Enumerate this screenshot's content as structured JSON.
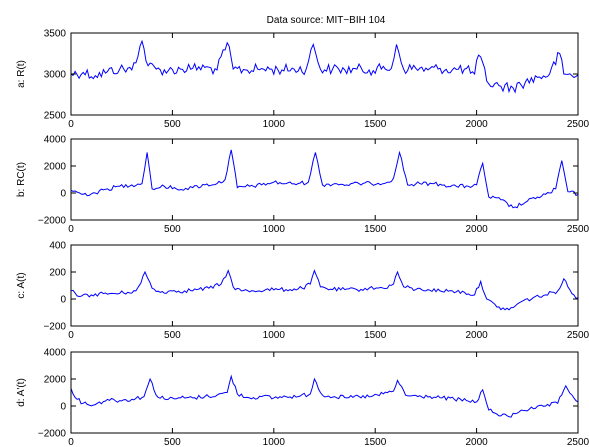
{
  "chart_data": {
    "title": "Data source: MIT−BIH 104",
    "panels": [
      {
        "type": "line",
        "ylabel": "a: R(t)",
        "xlim": [
          0,
          2500
        ],
        "ylim": [
          2500,
          3500
        ],
        "xticks": [
          0,
          500,
          1000,
          1500,
          2000,
          2500
        ],
        "xtick_labels": [
          "0",
          "500",
          "1000",
          "1500",
          "2000",
          "2500"
        ],
        "yticks": [
          2500,
          3000,
          3500
        ],
        "ytick_labels": [
          "2500",
          "3000",
          "3500"
        ],
        "color": "#0000ff",
        "series": [
          {
            "x": [
              0,
              60,
              120,
              180,
              240,
              300,
              350,
              380,
              420,
              480,
              540,
              600,
              660,
              720,
              770,
              800,
              860,
              920,
              980,
              1040,
              1100,
              1160,
              1195,
              1230,
              1290,
              1350,
              1410,
              1470,
              1530,
              1580,
              1605,
              1640,
              1700,
              1760,
              1820,
              1880,
              1940,
              1990,
              2010,
              2060,
              2120,
              2180,
              2240,
              2300,
              2360,
              2410,
              2430,
              2470,
              2500
            ],
            "y": [
              3000,
              3020,
              2980,
              3030,
              3060,
              3050,
              3400,
              3100,
              3060,
              3040,
              3060,
              3070,
              3080,
              3050,
              3380,
              3060,
              3050,
              3060,
              3060,
              3050,
              3060,
              3060,
              3360,
              3060,
              3060,
              3050,
              3060,
              3050,
              3060,
              3070,
              3360,
              3060,
              3070,
              3050,
              3070,
              3050,
              3060,
              3000,
              3230,
              2880,
              2850,
              2830,
              2900,
              2960,
              3000,
              3250,
              3000,
              2980,
              2990
            ]
          }
        ]
      },
      {
        "type": "line",
        "ylabel": "b: RC(t)",
        "xlim": [
          0,
          2500
        ],
        "ylim": [
          -2000,
          4000
        ],
        "xticks": [
          0,
          500,
          1000,
          1500,
          2000,
          2500
        ],
        "xtick_labels": [
          "0",
          "500",
          "1000",
          "1500",
          "2000",
          "2500"
        ],
        "yticks": [
          -2000,
          0,
          2000,
          4000
        ],
        "ytick_labels": [
          "−2000",
          "0",
          "2000",
          "4000"
        ],
        "color": "#0000ff",
        "series": [
          {
            "x": [
              0,
              60,
              120,
              180,
              240,
              300,
              350,
              375,
              400,
              460,
              520,
              600,
              660,
              720,
              760,
              790,
              820,
              880,
              940,
              1000,
              1060,
              1120,
              1170,
              1205,
              1240,
              1300,
              1360,
              1420,
              1480,
              1560,
              1590,
              1620,
              1660,
              1720,
              1780,
              1840,
              1900,
              1960,
              2000,
              2030,
              2060,
              2120,
              2180,
              2240,
              2300,
              2360,
              2390,
              2420,
              2450,
              2500
            ],
            "y": [
              200,
              -100,
              0,
              300,
              500,
              600,
              700,
              3000,
              300,
              500,
              300,
              400,
              600,
              700,
              1000,
              3200,
              400,
              500,
              600,
              800,
              700,
              700,
              800,
              3000,
              600,
              700,
              600,
              700,
              700,
              800,
              1100,
              3000,
              600,
              700,
              700,
              600,
              500,
              500,
              600,
              2200,
              -300,
              -500,
              -1100,
              -700,
              -300,
              0,
              300,
              2400,
              100,
              -100
            ]
          }
        ]
      },
      {
        "type": "line",
        "ylabel": "c: A(t)",
        "xlim": [
          0,
          2500
        ],
        "ylim": [
          -200,
          400
        ],
        "xticks": [
          0,
          500,
          1000,
          1500,
          2000,
          2500
        ],
        "xtick_labels": [
          "0",
          "500",
          "1000",
          "1500",
          "2000",
          "2500"
        ],
        "yticks": [
          -200,
          0,
          200,
          400
        ],
        "ytick_labels": [
          "−200",
          "0",
          "200",
          "400"
        ],
        "color": "#0000ff",
        "series": [
          {
            "x": [
              0,
              50,
              100,
              160,
              220,
              280,
              320,
              345,
              365,
              400,
              440,
              500,
              560,
              620,
              680,
              740,
              775,
              800,
              840,
              900,
              960,
              1020,
              1080,
              1140,
              1180,
              1200,
              1230,
              1290,
              1350,
              1410,
              1470,
              1540,
              1590,
              1610,
              1640,
              1700,
              1760,
              1820,
              1880,
              1940,
              1990,
              2020,
              2050,
              2100,
              2160,
              2220,
              2280,
              2340,
              2400,
              2430,
              2470,
              2500
            ],
            "y": [
              60,
              20,
              30,
              40,
              40,
              50,
              60,
              120,
              200,
              80,
              50,
              60,
              60,
              70,
              80,
              110,
              210,
              90,
              60,
              60,
              70,
              70,
              70,
              80,
              110,
              210,
              90,
              70,
              70,
              70,
              80,
              80,
              110,
              200,
              90,
              70,
              70,
              60,
              60,
              50,
              30,
              130,
              0,
              -60,
              -80,
              -20,
              10,
              30,
              60,
              150,
              40,
              10
            ]
          }
        ]
      },
      {
        "type": "line",
        "ylabel": "d: A'(t)",
        "xlim": [
          0,
          2500
        ],
        "ylim": [
          -2000,
          4000
        ],
        "xticks": [
          0,
          500,
          1000,
          1500,
          2000,
          2500
        ],
        "xtick_labels": [
          "0",
          "500",
          "1000",
          "1500",
          "2000",
          "2500"
        ],
        "yticks": [
          -2000,
          0,
          2000,
          4000
        ],
        "ytick_labels": [
          "−2000",
          "0",
          "2000",
          "4000"
        ],
        "color": "#0000ff",
        "series": [
          {
            "x": [
              0,
              30,
              60,
              120,
              180,
              240,
              300,
              360,
              390,
              420,
              480,
              540,
              600,
              660,
              720,
              770,
              790,
              820,
              880,
              940,
              1000,
              1060,
              1120,
              1180,
              1200,
              1240,
              1300,
              1360,
              1420,
              1480,
              1540,
              1590,
              1610,
              1650,
              1710,
              1770,
              1830,
              1890,
              1950,
              2000,
              2030,
              2060,
              2100,
              2160,
              2220,
              2280,
              2340,
              2400,
              2440,
              2480,
              2500
            ],
            "y": [
              1300,
              500,
              200,
              100,
              500,
              400,
              500,
              700,
              2000,
              800,
              500,
              600,
              600,
              700,
              800,
              1000,
              2200,
              900,
              600,
              700,
              600,
              700,
              700,
              900,
              2000,
              800,
              700,
              600,
              700,
              700,
              900,
              1100,
              1900,
              800,
              700,
              700,
              600,
              500,
              400,
              300,
              1200,
              -300,
              -600,
              -800,
              -300,
              -200,
              0,
              200,
              1500,
              600,
              300
            ]
          }
        ]
      }
    ]
  }
}
